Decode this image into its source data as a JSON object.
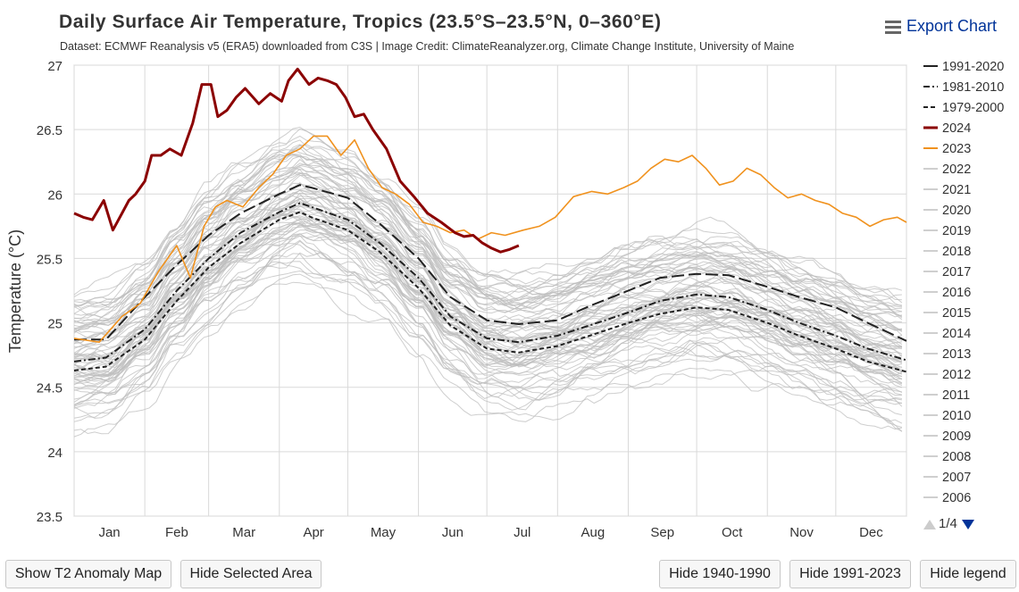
{
  "header": {
    "title": "Daily Surface Air Temperature, Tropics (23.5°S–23.5°N, 0–360°E)",
    "subtitle": "Dataset: ECMWF Reanalysis v5 (ERA5) downloaded from C3S | Image Credit: ClimateReanalyzer.org, Climate Change Institute, University of Maine",
    "export_label": "Export Chart"
  },
  "legend": {
    "items": [
      {
        "label": "1991-2020",
        "style": "solid-black"
      },
      {
        "label": "1981-2010",
        "style": "dashdot-black"
      },
      {
        "label": "1979-2000",
        "style": "dash-black"
      },
      {
        "label": "2024",
        "style": "darkred"
      },
      {
        "label": "2023",
        "style": "orange"
      },
      {
        "label": "2022",
        "style": "grey"
      },
      {
        "label": "2021",
        "style": "grey"
      },
      {
        "label": "2020",
        "style": "grey"
      },
      {
        "label": "2019",
        "style": "grey"
      },
      {
        "label": "2018",
        "style": "grey"
      },
      {
        "label": "2017",
        "style": "grey"
      },
      {
        "label": "2016",
        "style": "grey"
      },
      {
        "label": "2015",
        "style": "grey"
      },
      {
        "label": "2014",
        "style": "grey"
      },
      {
        "label": "2013",
        "style": "grey"
      },
      {
        "label": "2012",
        "style": "grey"
      },
      {
        "label": "2011",
        "style": "grey"
      },
      {
        "label": "2010",
        "style": "grey"
      },
      {
        "label": "2009",
        "style": "grey"
      },
      {
        "label": "2008",
        "style": "grey"
      },
      {
        "label": "2007",
        "style": "grey"
      },
      {
        "label": "2006",
        "style": "grey"
      }
    ],
    "page_indicator": "1/4"
  },
  "buttons": {
    "anomaly_map": "Show T2 Anomaly Map",
    "hide_area": "Hide Selected Area",
    "hide_1940": "Hide 1940-1990",
    "hide_1991": "Hide 1991-2023",
    "hide_legend": "Hide legend"
  },
  "colors": {
    "y2024": "#8b0000",
    "y2023": "#f0921e",
    "grey": "#bdbdbd",
    "climatology": "#222222",
    "grid": "#d9d9d9"
  },
  "chart_data": {
    "type": "line",
    "title": "Daily Surface Air Temperature, Tropics (23.5°S–23.5°N, 0–360°E)",
    "xlabel": "",
    "ylabel": "Temperature (°C)",
    "ylim": [
      23.5,
      27
    ],
    "yticks": [
      23.5,
      24,
      24.5,
      25,
      25.5,
      26,
      26.5,
      27
    ],
    "xlim": [
      1,
      366
    ],
    "months": [
      "Jan",
      "Feb",
      "Mar",
      "Apr",
      "May",
      "Jun",
      "Jul",
      "Aug",
      "Sep",
      "Oct",
      "Nov",
      "Dec"
    ],
    "series": [
      {
        "name": "1991-2020",
        "style": "solid",
        "x": [
          1,
          15,
          32,
          46,
          60,
          74,
          91,
          100,
          105,
          121,
          135,
          152,
          166,
          182,
          196,
          213,
          227,
          244,
          258,
          274,
          288,
          305,
          319,
          335,
          349,
          366
        ],
        "y": [
          24.87,
          24.87,
          25.2,
          25.45,
          25.68,
          25.85,
          26.0,
          26.07,
          26.05,
          25.97,
          25.77,
          25.5,
          25.2,
          25.02,
          24.99,
          25.02,
          25.13,
          25.25,
          25.35,
          25.38,
          25.37,
          25.28,
          25.2,
          25.12,
          25.0,
          24.86
        ]
      },
      {
        "name": "1981-2010",
        "style": "dashdot",
        "x": [
          1,
          15,
          32,
          46,
          60,
          74,
          91,
          100,
          105,
          121,
          135,
          152,
          166,
          182,
          196,
          213,
          227,
          244,
          258,
          274,
          288,
          305,
          319,
          335,
          349,
          366
        ],
        "y": [
          24.7,
          24.73,
          24.95,
          25.25,
          25.5,
          25.7,
          25.86,
          25.93,
          25.9,
          25.8,
          25.62,
          25.35,
          25.05,
          24.88,
          24.85,
          24.9,
          24.98,
          25.08,
          25.17,
          25.22,
          25.2,
          25.1,
          25.0,
          24.9,
          24.8,
          24.71
        ]
      },
      {
        "name": "1979-2000",
        "style": "dash",
        "x": [
          1,
          15,
          32,
          46,
          60,
          74,
          91,
          100,
          105,
          121,
          135,
          152,
          166,
          182,
          196,
          213,
          227,
          244,
          258,
          274,
          288,
          305,
          319,
          335,
          349,
          366
        ],
        "y": [
          24.63,
          24.66,
          24.87,
          25.17,
          25.43,
          25.62,
          25.8,
          25.86,
          25.82,
          25.72,
          25.55,
          25.27,
          24.98,
          24.8,
          24.77,
          24.82,
          24.9,
          25.0,
          25.07,
          25.12,
          25.1,
          25.0,
          24.9,
          24.8,
          24.7,
          24.62
        ]
      },
      {
        "name": "2024",
        "style": "solid",
        "x": [
          1,
          5,
          9,
          14,
          18,
          22,
          25,
          28,
          32,
          35,
          39,
          43,
          48,
          53,
          57,
          61,
          64,
          68,
          72,
          76,
          82,
          87,
          92,
          95,
          99,
          104,
          108,
          112,
          116,
          120,
          124,
          128,
          132,
          138,
          144,
          150,
          156,
          162,
          168,
          172,
          176,
          180,
          184,
          188,
          192,
          196
        ],
        "y": [
          25.85,
          25.82,
          25.8,
          25.95,
          25.72,
          25.85,
          25.95,
          26.0,
          26.1,
          26.3,
          26.3,
          26.35,
          26.3,
          26.55,
          26.85,
          26.85,
          26.6,
          26.65,
          26.75,
          26.82,
          26.7,
          26.78,
          26.72,
          26.88,
          26.97,
          26.85,
          26.9,
          26.88,
          26.85,
          26.75,
          26.6,
          26.62,
          26.5,
          26.35,
          26.1,
          25.98,
          25.85,
          25.78,
          25.7,
          25.67,
          25.68,
          25.62,
          25.58,
          25.55,
          25.57,
          25.6
        ]
      },
      {
        "name": "2023",
        "style": "solid",
        "x": [
          1,
          12,
          22,
          30,
          38,
          46,
          52,
          58,
          63,
          68,
          75,
          82,
          88,
          94,
          100,
          106,
          112,
          118,
          124,
          130,
          136,
          142,
          148,
          154,
          160,
          166,
          172,
          178,
          184,
          190,
          198,
          205,
          212,
          220,
          228,
          235,
          242,
          248,
          254,
          260,
          266,
          272,
          278,
          284,
          290,
          296,
          302,
          308,
          314,
          320,
          326,
          332,
          338,
          344,
          350,
          356,
          362,
          366
        ],
        "y": [
          24.88,
          24.85,
          25.05,
          25.15,
          25.4,
          25.6,
          25.35,
          25.75,
          25.9,
          25.95,
          25.9,
          26.05,
          26.15,
          26.3,
          26.35,
          26.45,
          26.45,
          26.3,
          26.42,
          26.2,
          26.05,
          26.0,
          25.92,
          25.78,
          25.75,
          25.7,
          25.72,
          25.65,
          25.7,
          25.68,
          25.72,
          25.75,
          25.82,
          25.98,
          26.02,
          26.0,
          26.05,
          26.1,
          26.2,
          26.27,
          26.25,
          26.3,
          26.2,
          26.07,
          26.1,
          26.2,
          26.15,
          26.05,
          25.97,
          26.0,
          25.95,
          25.92,
          25.85,
          25.82,
          25.75,
          25.8,
          25.82,
          25.78
        ]
      }
    ],
    "grey_years_note": "2022-2006 and earlier shown as light grey lines"
  }
}
